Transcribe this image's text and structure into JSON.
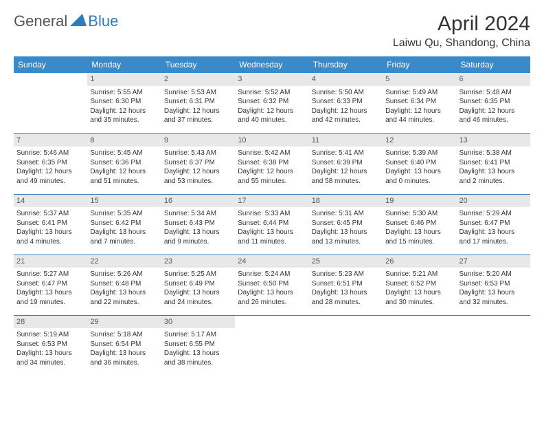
{
  "logo": {
    "part1": "General",
    "part2": "Blue"
  },
  "title": "April 2024",
  "location": "Laiwu Qu, Shandong, China",
  "colors": {
    "header_bg": "#3a8ac9",
    "border": "#2e7cc0",
    "daynum_bg": "#e8e8e8",
    "logo_blue": "#2e7cc0",
    "text": "#333333"
  },
  "weekdays": [
    "Sunday",
    "Monday",
    "Tuesday",
    "Wednesday",
    "Thursday",
    "Friday",
    "Saturday"
  ],
  "start_weekday": 1,
  "days": [
    {
      "n": 1,
      "sr": "5:55 AM",
      "ss": "6:30 PM",
      "dl": "12 hours and 35 minutes."
    },
    {
      "n": 2,
      "sr": "5:53 AM",
      "ss": "6:31 PM",
      "dl": "12 hours and 37 minutes."
    },
    {
      "n": 3,
      "sr": "5:52 AM",
      "ss": "6:32 PM",
      "dl": "12 hours and 40 minutes."
    },
    {
      "n": 4,
      "sr": "5:50 AM",
      "ss": "6:33 PM",
      "dl": "12 hours and 42 minutes."
    },
    {
      "n": 5,
      "sr": "5:49 AM",
      "ss": "6:34 PM",
      "dl": "12 hours and 44 minutes."
    },
    {
      "n": 6,
      "sr": "5:48 AM",
      "ss": "6:35 PM",
      "dl": "12 hours and 46 minutes."
    },
    {
      "n": 7,
      "sr": "5:46 AM",
      "ss": "6:35 PM",
      "dl": "12 hours and 49 minutes."
    },
    {
      "n": 8,
      "sr": "5:45 AM",
      "ss": "6:36 PM",
      "dl": "12 hours and 51 minutes."
    },
    {
      "n": 9,
      "sr": "5:43 AM",
      "ss": "6:37 PM",
      "dl": "12 hours and 53 minutes."
    },
    {
      "n": 10,
      "sr": "5:42 AM",
      "ss": "6:38 PM",
      "dl": "12 hours and 55 minutes."
    },
    {
      "n": 11,
      "sr": "5:41 AM",
      "ss": "6:39 PM",
      "dl": "12 hours and 58 minutes."
    },
    {
      "n": 12,
      "sr": "5:39 AM",
      "ss": "6:40 PM",
      "dl": "13 hours and 0 minutes."
    },
    {
      "n": 13,
      "sr": "5:38 AM",
      "ss": "6:41 PM",
      "dl": "13 hours and 2 minutes."
    },
    {
      "n": 14,
      "sr": "5:37 AM",
      "ss": "6:41 PM",
      "dl": "13 hours and 4 minutes."
    },
    {
      "n": 15,
      "sr": "5:35 AM",
      "ss": "6:42 PM",
      "dl": "13 hours and 7 minutes."
    },
    {
      "n": 16,
      "sr": "5:34 AM",
      "ss": "6:43 PM",
      "dl": "13 hours and 9 minutes."
    },
    {
      "n": 17,
      "sr": "5:33 AM",
      "ss": "6:44 PM",
      "dl": "13 hours and 11 minutes."
    },
    {
      "n": 18,
      "sr": "5:31 AM",
      "ss": "6:45 PM",
      "dl": "13 hours and 13 minutes."
    },
    {
      "n": 19,
      "sr": "5:30 AM",
      "ss": "6:46 PM",
      "dl": "13 hours and 15 minutes."
    },
    {
      "n": 20,
      "sr": "5:29 AM",
      "ss": "6:47 PM",
      "dl": "13 hours and 17 minutes."
    },
    {
      "n": 21,
      "sr": "5:27 AM",
      "ss": "6:47 PM",
      "dl": "13 hours and 19 minutes."
    },
    {
      "n": 22,
      "sr": "5:26 AM",
      "ss": "6:48 PM",
      "dl": "13 hours and 22 minutes."
    },
    {
      "n": 23,
      "sr": "5:25 AM",
      "ss": "6:49 PM",
      "dl": "13 hours and 24 minutes."
    },
    {
      "n": 24,
      "sr": "5:24 AM",
      "ss": "6:50 PM",
      "dl": "13 hours and 26 minutes."
    },
    {
      "n": 25,
      "sr": "5:23 AM",
      "ss": "6:51 PM",
      "dl": "13 hours and 28 minutes."
    },
    {
      "n": 26,
      "sr": "5:21 AM",
      "ss": "6:52 PM",
      "dl": "13 hours and 30 minutes."
    },
    {
      "n": 27,
      "sr": "5:20 AM",
      "ss": "6:53 PM",
      "dl": "13 hours and 32 minutes."
    },
    {
      "n": 28,
      "sr": "5:19 AM",
      "ss": "6:53 PM",
      "dl": "13 hours and 34 minutes."
    },
    {
      "n": 29,
      "sr": "5:18 AM",
      "ss": "6:54 PM",
      "dl": "13 hours and 36 minutes."
    },
    {
      "n": 30,
      "sr": "5:17 AM",
      "ss": "6:55 PM",
      "dl": "13 hours and 38 minutes."
    }
  ],
  "labels": {
    "sunrise": "Sunrise:",
    "sunset": "Sunset:",
    "daylight": "Daylight:"
  }
}
